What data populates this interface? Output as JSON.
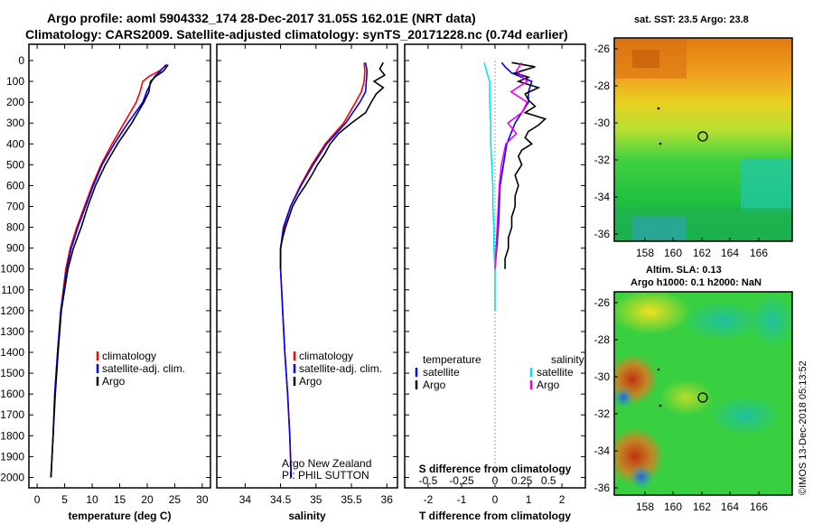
{
  "title_line1": "Argo profile: aoml 5904332_174 28-Dec-2017 31.05S 162.01E (NRT data)",
  "title_line2": "Climatology: CARS2009. Satellite-adjusted climatology: synTS_20171228.nc (0.74d earlier)",
  "credit": "©IMOS 13-Dec-2018 05:13:52",
  "colors": {
    "climatology": "#ff0000",
    "satellite": "#0000ff",
    "argo": "#000000",
    "sat_salinity": "#00e5ee",
    "argo_salinity": "#ee00ee"
  },
  "chart_data": [
    {
      "type": "line",
      "name": "temperature",
      "xlabel": "temperature (deg C)",
      "xlim": [
        -1.5,
        31.5
      ],
      "xticks": [
        0,
        5,
        10,
        15,
        20,
        25,
        30
      ],
      "ylim": [
        0,
        2050
      ],
      "yticks": [
        0,
        100,
        200,
        300,
        400,
        500,
        600,
        700,
        800,
        900,
        1000,
        1100,
        1200,
        1300,
        1400,
        1500,
        1600,
        1700,
        1800,
        1900,
        2000
      ],
      "legend": [
        "climatology",
        "satellite-adj. clim.",
        "Argo"
      ],
      "series": [
        {
          "name": "climatology",
          "color": "red",
          "depth": [
            20,
            50,
            75,
            100,
            150,
            200,
            300,
            400,
            500,
            600,
            700,
            800,
            900,
            1000,
            1200,
            1400,
            1600,
            1800,
            2000
          ],
          "values": [
            23.6,
            22.2,
            20.4,
            19.2,
            18.7,
            18.0,
            15.8,
            13.6,
            11.6,
            10.0,
            8.6,
            7.2,
            6.0,
            5.2,
            4.3,
            3.7,
            3.2,
            2.9,
            2.5
          ]
        },
        {
          "name": "satellite-adj. clim.",
          "color": "blue",
          "depth": [
            20,
            50,
            75,
            100,
            150,
            200,
            300,
            400,
            500,
            600,
            700,
            800,
            900,
            1000,
            1200,
            1400,
            1600,
            1800,
            2000
          ],
          "values": [
            23.4,
            22.4,
            21.4,
            20.8,
            19.9,
            19.2,
            16.5,
            14.0,
            11.8,
            10.2,
            8.8,
            7.4,
            6.2,
            5.4,
            4.3,
            3.7,
            3.2,
            2.9,
            2.5
          ]
        },
        {
          "name": "Argo",
          "color": "black",
          "depth": [
            20,
            50,
            75,
            100,
            150,
            200,
            300,
            400,
            500,
            600,
            700,
            800,
            900,
            1000,
            1200,
            1400,
            1600,
            1800,
            2000
          ],
          "values": [
            23.8,
            23.0,
            21.6,
            20.6,
            20.3,
            19.4,
            17.2,
            14.6,
            12.4,
            10.6,
            9.2,
            8.0,
            6.6,
            5.6,
            4.4,
            3.8,
            3.3,
            2.9,
            2.5
          ]
        }
      ]
    },
    {
      "type": "line",
      "name": "salinity",
      "xlabel": "salinity",
      "xlim": [
        33.6,
        36.15
      ],
      "xticks": [
        34,
        34.5,
        35,
        35.5,
        36
      ],
      "xtick_labels": [
        "34",
        "34.5",
        "35",
        "35.5",
        "36"
      ],
      "ylim": [
        0,
        2050
      ],
      "legend": [
        "climatology",
        "satellite-adj. clim.",
        "Argo"
      ],
      "annotation": [
        "Argo New Zealand",
        "PI: PHIL SUTTON"
      ],
      "series": [
        {
          "name": "climatology",
          "color": "red",
          "depth": [
            10,
            50,
            100,
            150,
            200,
            300,
            400,
            500,
            600,
            700,
            800,
            900,
            1000,
            1200,
            1400,
            1600,
            1800,
            2000
          ],
          "values": [
            35.68,
            35.69,
            35.68,
            35.64,
            35.56,
            35.39,
            35.13,
            34.94,
            34.78,
            34.64,
            34.55,
            34.5,
            34.5,
            34.53,
            34.56,
            34.6,
            34.63,
            34.65
          ]
        },
        {
          "name": "satellite-adj. clim.",
          "color": "blue",
          "depth": [
            10,
            50,
            100,
            150,
            200,
            300,
            400,
            500,
            600,
            700,
            800,
            900,
            1000,
            1200,
            1400,
            1600,
            1800,
            2000
          ],
          "values": [
            35.7,
            35.72,
            35.71,
            35.7,
            35.62,
            35.42,
            35.15,
            34.96,
            34.79,
            34.64,
            34.54,
            34.5,
            34.5,
            34.53,
            34.56,
            34.6,
            34.63,
            34.65
          ]
        },
        {
          "name": "Argo",
          "color": "black",
          "depth": [
            10,
            40,
            70,
            100,
            130,
            160,
            200,
            250,
            300,
            350,
            400,
            450,
            500,
            550,
            600,
            650,
            700,
            750,
            800,
            850,
            900,
            950,
            1000
          ],
          "values": [
            35.95,
            35.9,
            35.97,
            35.82,
            35.95,
            35.85,
            35.78,
            35.7,
            35.5,
            35.32,
            35.2,
            35.12,
            35.02,
            34.94,
            34.85,
            34.75,
            34.67,
            34.62,
            34.57,
            34.53,
            34.5,
            34.5,
            34.5
          ]
        }
      ]
    },
    {
      "type": "line",
      "name": "difference",
      "xlabel": "T difference from climatology",
      "xlabel2": "S difference from climatology",
      "xlim": [
        -2.7,
        2.7
      ],
      "xticks": [
        -2,
        -1,
        0,
        1,
        2
      ],
      "xtick_labels": [
        "-2",
        "-1",
        "0",
        "1",
        "2"
      ],
      "s_ticks": [
        "-0.5",
        "-0.25",
        "0",
        "0.25",
        "0.5"
      ],
      "ylim": [
        0,
        2050
      ],
      "legend_left_head": "temperature",
      "legend_right_head": "salinity",
      "legend_left": [
        "satellite",
        "Argo"
      ],
      "legend_right": [
        "satellite",
        "Argo"
      ],
      "series": [
        {
          "name": "T satellite",
          "color": "blue",
          "depth": [
            10,
            30,
            60,
            100,
            150,
            200,
            250,
            300,
            400,
            500,
            600,
            800,
            1000
          ],
          "values": [
            0.2,
            0.3,
            0.5,
            1.1,
            1.0,
            1.0,
            0.8,
            0.6,
            0.35,
            0.25,
            0.15,
            0.1,
            0.0
          ]
        },
        {
          "name": "T Argo",
          "color": "black",
          "depth": [
            10,
            30,
            60,
            80,
            100,
            130,
            160,
            190,
            220,
            250,
            280,
            310,
            340,
            370,
            400,
            430,
            460,
            500,
            550,
            600,
            650,
            700,
            750,
            800,
            850,
            900,
            950,
            1000
          ],
          "values": [
            0.5,
            1.2,
            0.6,
            1.0,
            0.7,
            1.3,
            0.9,
            1.0,
            1.2,
            0.9,
            1.5,
            1.3,
            1.0,
            0.9,
            1.1,
            0.8,
            0.7,
            0.8,
            0.6,
            0.7,
            0.6,
            0.6,
            0.5,
            0.5,
            0.4,
            0.4,
            0.3,
            0.3
          ]
        },
        {
          "name": "S satellite",
          "color": "cyan",
          "depth": [
            10,
            50,
            100,
            200,
            300,
            400,
            500,
            600,
            700,
            800,
            900,
            1000,
            1100,
            1200
          ],
          "values": [
            -0.1,
            -0.08,
            -0.05,
            -0.05,
            -0.04,
            -0.04,
            -0.03,
            -0.02,
            -0.02,
            -0.01,
            -0.01,
            0.0,
            0.0,
            0.0
          ]
        },
        {
          "name": "S Argo",
          "color": "magenta",
          "depth": [
            10,
            50,
            100,
            150,
            200,
            250,
            300,
            350,
            400,
            450,
            500,
            550,
            600,
            700,
            800,
            900,
            1000
          ],
          "values": [
            0.25,
            0.2,
            0.3,
            0.15,
            0.3,
            0.25,
            0.12,
            0.2,
            0.1,
            0.08,
            0.06,
            0.05,
            0.04,
            0.03,
            0.02,
            0.01,
            0.0
          ]
        }
      ]
    },
    {
      "type": "heatmap",
      "name": "sst-map",
      "title": "sat. SST: 23.5 Argo: 23.8",
      "xticks": [
        "158",
        "160",
        "162",
        "164",
        "166"
      ],
      "yticks": [
        "-26",
        "-28",
        "-30",
        "-32",
        "-34",
        "-36"
      ]
    },
    {
      "type": "heatmap",
      "name": "sla-map",
      "title1": "Altim. SLA: 0.13",
      "title2": "Argo h1000: 0.1 h2000: NaN",
      "xticks": [
        "158",
        "160",
        "162",
        "164",
        "166"
      ],
      "yticks": [
        "-26",
        "-28",
        "-30",
        "-32",
        "-34",
        "-36"
      ]
    }
  ]
}
